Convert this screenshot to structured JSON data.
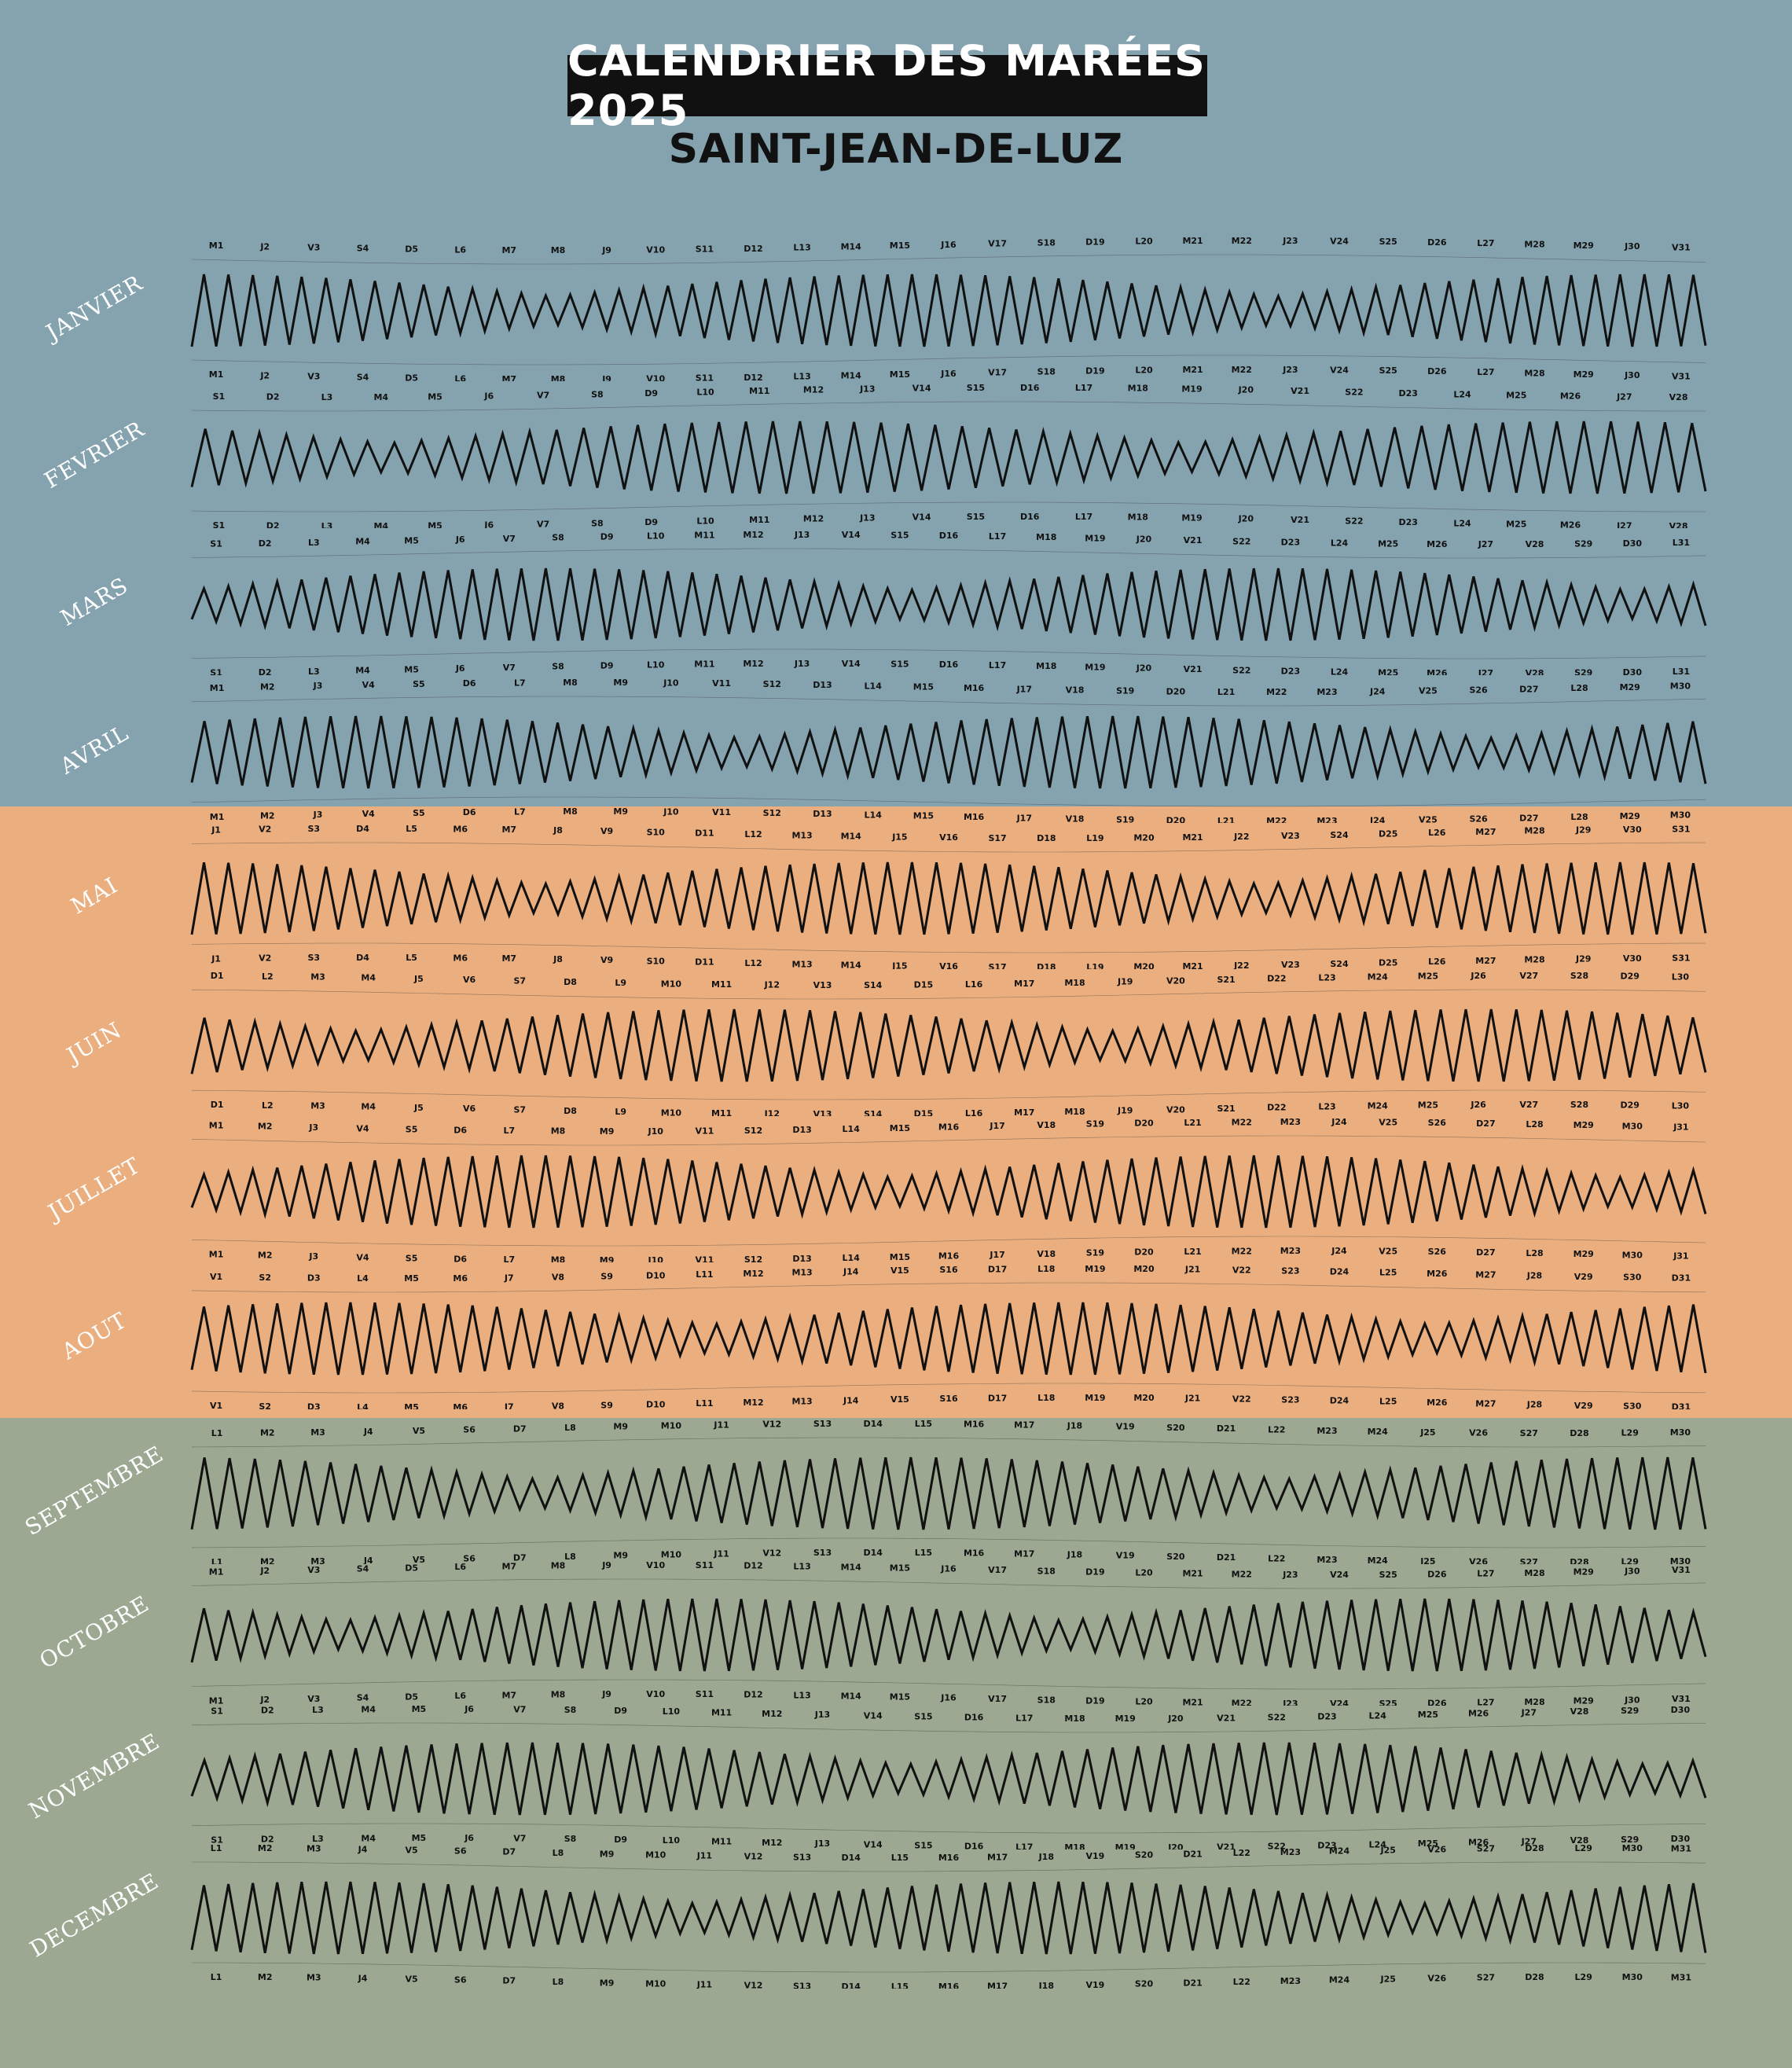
{
  "title": "CALENDRIER DES MARÉES 2025",
  "subtitle": "SAINT-JEAN-DE-LUZ",
  "colors": {
    "winter": "#85a3ae",
    "summer": "#ebaf7f",
    "autumn": "#9ca892",
    "wave": "#111111",
    "high_coef": "#d8382c",
    "low_coef": "#2f8f2f"
  },
  "months": [
    {
      "name": "JANVIER",
      "days": [
        "M1",
        "J2",
        "V3",
        "S4",
        "D5",
        "L6",
        "M7",
        "M8",
        "J9",
        "V10",
        "S11",
        "D12",
        "L13",
        "M14",
        "M15",
        "J16",
        "V17",
        "S18",
        "D19",
        "L20",
        "M21",
        "M22",
        "J23",
        "V24",
        "S25",
        "D26",
        "L27",
        "M28",
        "M29",
        "J30",
        "V31"
      ]
    },
    {
      "name": "FEVRIER",
      "days": [
        "S1",
        "D2",
        "L3",
        "M4",
        "M5",
        "J6",
        "V7",
        "S8",
        "D9",
        "L10",
        "M11",
        "M12",
        "J13",
        "V14",
        "S15",
        "D16",
        "L17",
        "M18",
        "M19",
        "J20",
        "V21",
        "S22",
        "D23",
        "L24",
        "M25",
        "M26",
        "J27",
        "V28"
      ]
    },
    {
      "name": "MARS",
      "days": [
        "S1",
        "D2",
        "L3",
        "M4",
        "M5",
        "J6",
        "V7",
        "S8",
        "D9",
        "L10",
        "M11",
        "M12",
        "J13",
        "V14",
        "S15",
        "D16",
        "L17",
        "M18",
        "M19",
        "J20",
        "V21",
        "S22",
        "D23",
        "L24",
        "M25",
        "M26",
        "J27",
        "V28",
        "S29",
        "D30",
        "L31"
      ]
    },
    {
      "name": "AVRIL",
      "days": [
        "M1",
        "M2",
        "J3",
        "V4",
        "S5",
        "D6",
        "L7",
        "M8",
        "M9",
        "J10",
        "V11",
        "S12",
        "D13",
        "L14",
        "M15",
        "M16",
        "J17",
        "V18",
        "S19",
        "D20",
        "L21",
        "M22",
        "M23",
        "J24",
        "V25",
        "S26",
        "D27",
        "L28",
        "M29",
        "M30"
      ]
    },
    {
      "name": "MAI",
      "days": [
        "J1",
        "V2",
        "S3",
        "D4",
        "L5",
        "M6",
        "M7",
        "J8",
        "V9",
        "S10",
        "D11",
        "L12",
        "M13",
        "M14",
        "J15",
        "V16",
        "S17",
        "D18",
        "L19",
        "M20",
        "M21",
        "J22",
        "V23",
        "S24",
        "D25",
        "L26",
        "M27",
        "M28",
        "J29",
        "V30",
        "S31"
      ]
    },
    {
      "name": "JUIN",
      "days": [
        "D1",
        "L2",
        "M3",
        "M4",
        "J5",
        "V6",
        "S7",
        "D8",
        "L9",
        "M10",
        "M11",
        "J12",
        "V13",
        "S14",
        "D15",
        "L16",
        "M17",
        "M18",
        "J19",
        "V20",
        "S21",
        "D22",
        "L23",
        "M24",
        "M25",
        "J26",
        "V27",
        "S28",
        "D29",
        "L30"
      ]
    },
    {
      "name": "JUILLET",
      "days": [
        "M1",
        "M2",
        "J3",
        "V4",
        "S5",
        "D6",
        "L7",
        "M8",
        "M9",
        "J10",
        "V11",
        "S12",
        "D13",
        "L14",
        "M15",
        "M16",
        "J17",
        "V18",
        "S19",
        "D20",
        "L21",
        "M22",
        "M23",
        "J24",
        "V25",
        "S26",
        "D27",
        "L28",
        "M29",
        "M30",
        "J31"
      ]
    },
    {
      "name": "AOUT",
      "days": [
        "V1",
        "S2",
        "D3",
        "L4",
        "M5",
        "M6",
        "J7",
        "V8",
        "S9",
        "D10",
        "L11",
        "M12",
        "M13",
        "J14",
        "V15",
        "S16",
        "D17",
        "L18",
        "M19",
        "M20",
        "J21",
        "V22",
        "S23",
        "D24",
        "L25",
        "M26",
        "M27",
        "J28",
        "V29",
        "S30",
        "D31"
      ]
    },
    {
      "name": "SEPTEMBRE",
      "days": [
        "L1",
        "M2",
        "M3",
        "J4",
        "V5",
        "S6",
        "D7",
        "L8",
        "M9",
        "M10",
        "J11",
        "V12",
        "S13",
        "D14",
        "L15",
        "M16",
        "M17",
        "J18",
        "V19",
        "S20",
        "D21",
        "L22",
        "M23",
        "M24",
        "J25",
        "V26",
        "S27",
        "D28",
        "L29",
        "M30"
      ]
    },
    {
      "name": "OCTOBRE",
      "days": [
        "M1",
        "J2",
        "V3",
        "S4",
        "D5",
        "L6",
        "M7",
        "M8",
        "J9",
        "V10",
        "S11",
        "D12",
        "L13",
        "M14",
        "M15",
        "J16",
        "V17",
        "S18",
        "D19",
        "L20",
        "M21",
        "M22",
        "J23",
        "V24",
        "S25",
        "D26",
        "L27",
        "M28",
        "M29",
        "J30",
        "V31"
      ]
    },
    {
      "name": "NOVEMBRE",
      "days": [
        "S1",
        "D2",
        "L3",
        "M4",
        "M5",
        "J6",
        "V7",
        "S8",
        "D9",
        "L10",
        "M11",
        "M12",
        "J13",
        "V14",
        "S15",
        "D16",
        "L17",
        "M18",
        "M19",
        "J20",
        "V21",
        "S22",
        "D23",
        "L24",
        "M25",
        "M26",
        "J27",
        "V28",
        "S29",
        "D30"
      ]
    },
    {
      "name": "DECEMBRE",
      "days": [
        "L1",
        "M2",
        "M3",
        "J4",
        "V5",
        "S6",
        "D7",
        "L8",
        "M9",
        "M10",
        "J11",
        "V12",
        "S13",
        "D14",
        "L15",
        "M16",
        "M17",
        "J18",
        "V19",
        "S20",
        "D21",
        "L22",
        "M23",
        "M24",
        "J25",
        "V26",
        "S27",
        "D28",
        "L29",
        "M30",
        "M31"
      ]
    }
  ]
}
